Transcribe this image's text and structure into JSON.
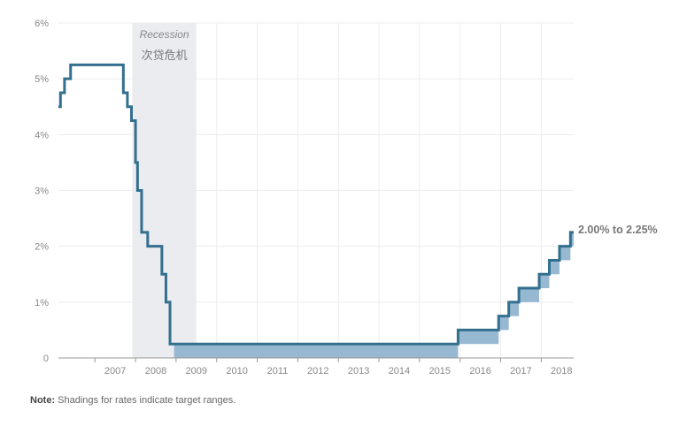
{
  "chart_data": {
    "type": "line",
    "step": true,
    "y_ticks": [
      "0",
      "1%",
      "2%",
      "3%",
      "4%",
      "5%",
      "6%"
    ],
    "y_tick_values": [
      0,
      1,
      2,
      3,
      4,
      5,
      6
    ],
    "x_ticks": [
      "2007",
      "2008",
      "2009",
      "2010",
      "2011",
      "2012",
      "2013",
      "2014",
      "2015",
      "2016",
      "2017",
      "2018"
    ],
    "ylim": [
      0,
      6
    ],
    "xlim": [
      2006.1,
      2018.8
    ],
    "grid": true,
    "recession": {
      "start": 2007.92,
      "end": 2009.5,
      "label": "Recession",
      "label_sub": "次贷危机"
    },
    "series": [
      {
        "type": "step-line",
        "points": [
          [
            2006.1,
            4.5
          ],
          [
            2006.15,
            4.75
          ],
          [
            2006.25,
            5.0
          ],
          [
            2006.4,
            5.25
          ],
          [
            2007.7,
            4.75
          ],
          [
            2007.8,
            4.5
          ],
          [
            2007.9,
            4.25
          ],
          [
            2008.0,
            3.5
          ],
          [
            2008.05,
            3.0
          ],
          [
            2008.15,
            2.25
          ],
          [
            2008.3,
            2.0
          ],
          [
            2008.65,
            1.5
          ],
          [
            2008.75,
            1.0
          ],
          [
            2008.85,
            0.25
          ],
          [
            2015.95,
            0.5
          ],
          [
            2016.95,
            0.75
          ],
          [
            2017.2,
            1.0
          ],
          [
            2017.45,
            1.25
          ],
          [
            2017.95,
            1.5
          ],
          [
            2018.2,
            1.75
          ],
          [
            2018.45,
            2.0
          ],
          [
            2018.72,
            2.25
          ],
          [
            2018.8,
            2.25
          ]
        ]
      },
      {
        "type": "target-range",
        "points": [
          [
            2008.95,
            0.0,
            0.25
          ],
          [
            2015.95,
            0.25,
            0.5
          ],
          [
            2016.95,
            0.5,
            0.75
          ],
          [
            2017.2,
            0.75,
            1.0
          ],
          [
            2017.45,
            1.0,
            1.25
          ],
          [
            2017.95,
            1.25,
            1.5
          ],
          [
            2018.2,
            1.5,
            1.75
          ],
          [
            2018.45,
            1.75,
            2.0
          ],
          [
            2018.72,
            2.0,
            2.25
          ],
          [
            2018.8,
            2.0,
            2.25
          ]
        ]
      }
    ],
    "annotation": "2.00% to 2.25%",
    "colors": {
      "line": "#336f8e",
      "range": "#97b8d1",
      "recession": "#ebecef",
      "grid": "#ececec",
      "axis": "#999999"
    }
  },
  "note": {
    "label": "Note:",
    "text": "Shadings for rates indicate target ranges."
  }
}
